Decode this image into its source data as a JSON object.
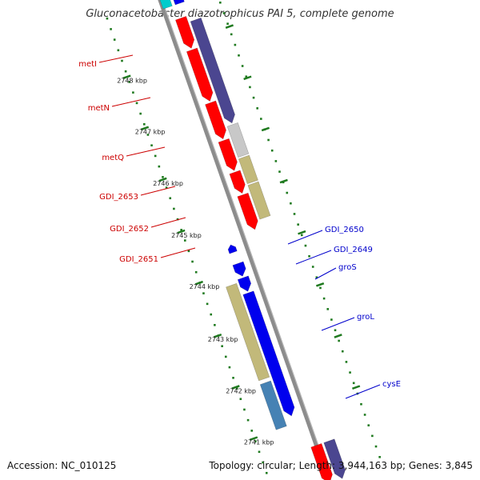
{
  "title": "Gluconacetobacter diazotrophicus PAI 5, complete genome",
  "accession_text": "Accession: NC_010125",
  "summary_text": "Topology: circular; Length: 3,944,163 bp; Genes: 3,845",
  "colors": {
    "backbone": "#8c8c8c",
    "ticks": "#1f7a1f",
    "label_red": "#cc0000",
    "label_blue": "#0000cc",
    "feature_purple": "#4b4690",
    "feature_red": "#ff0000",
    "feature_gray": "#c8c8c8",
    "feature_khaki": "#c2b97a",
    "feature_blue": "#0000ee",
    "feature_steel": "#4682b4",
    "feature_cyan": "#00cccc"
  },
  "ticks": [
    {
      "label": "2748 kbp"
    },
    {
      "label": "2747 kbp"
    },
    {
      "label": "2746 kbp"
    },
    {
      "label": "2745 kbp"
    },
    {
      "label": "2744 kbp"
    },
    {
      "label": "2743 kbp"
    },
    {
      "label": "2742 kbp"
    },
    {
      "label": "2741 kbp"
    }
  ],
  "genes_left": [
    {
      "label": "metI"
    },
    {
      "label": "metN"
    },
    {
      "label": "metQ"
    },
    {
      "label": "GDI_2653"
    },
    {
      "label": "GDI_2652"
    },
    {
      "label": "GDI_2651"
    }
  ],
  "genes_right": [
    {
      "label": "GDI_2650"
    },
    {
      "label": "GDI_2649"
    },
    {
      "label": "groS"
    },
    {
      "label": "groL"
    },
    {
      "label": "cysE"
    }
  ]
}
